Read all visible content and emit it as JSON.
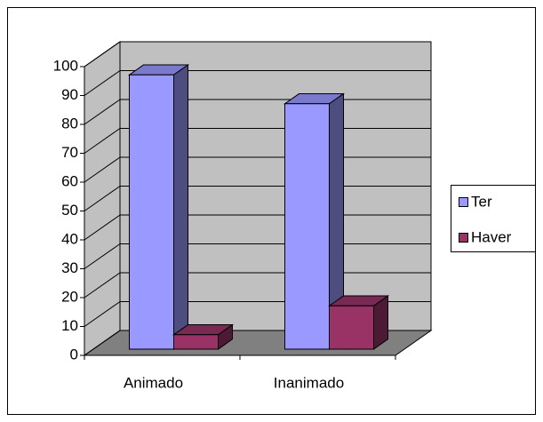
{
  "chart_data": {
    "type": "bar3d",
    "categories": [
      "Animado",
      "Inanimado"
    ],
    "series": [
      {
        "name": "Ter",
        "color": "#9999ff",
        "values": [
          95,
          85
        ]
      },
      {
        "name": "Haver",
        "color": "#993366",
        "values": [
          5,
          15
        ]
      }
    ],
    "ylim": [
      0,
      100
    ],
    "yticks": [
      0,
      10,
      20,
      30,
      40,
      50,
      60,
      70,
      80,
      90,
      100
    ],
    "grid": true,
    "legend": "right"
  }
}
